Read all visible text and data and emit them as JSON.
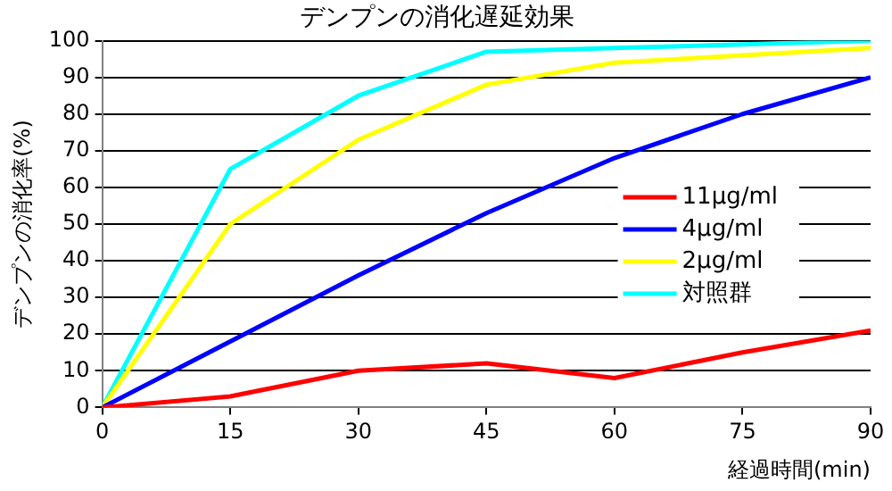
{
  "chart_data": {
    "type": "line",
    "title": "デンプンの消化遅延効果",
    "xlabel": "経過時間(min)",
    "ylabel": "デンプンの消化率(%)",
    "x": [
      0,
      15,
      30,
      45,
      60,
      75,
      90
    ],
    "series": [
      {
        "name": "11μg/ml",
        "color": "#ff0000",
        "values": [
          0,
          3,
          10,
          12,
          8,
          15,
          21
        ]
      },
      {
        "name": "4μg/ml",
        "color": "#0000ff",
        "values": [
          0,
          18,
          36,
          53,
          68,
          80,
          90
        ]
      },
      {
        "name": "2μg/ml",
        "color": "#ffff00",
        "values": [
          0,
          50,
          73,
          88,
          94,
          96,
          98
        ]
      },
      {
        "name": "対照群",
        "color": "#00ffff",
        "values": [
          0,
          65,
          85,
          97,
          98,
          99,
          100
        ]
      }
    ],
    "xlim": [
      0,
      90
    ],
    "xticks": [
      0,
      15,
      30,
      45,
      60,
      75,
      90
    ],
    "ylim": [
      0,
      100
    ],
    "yticks": [
      0,
      10,
      20,
      30,
      40,
      50,
      60,
      70,
      80,
      90,
      100
    ],
    "grid": "y",
    "legend": "right",
    "marker": "none",
    "line_style": "solid"
  }
}
